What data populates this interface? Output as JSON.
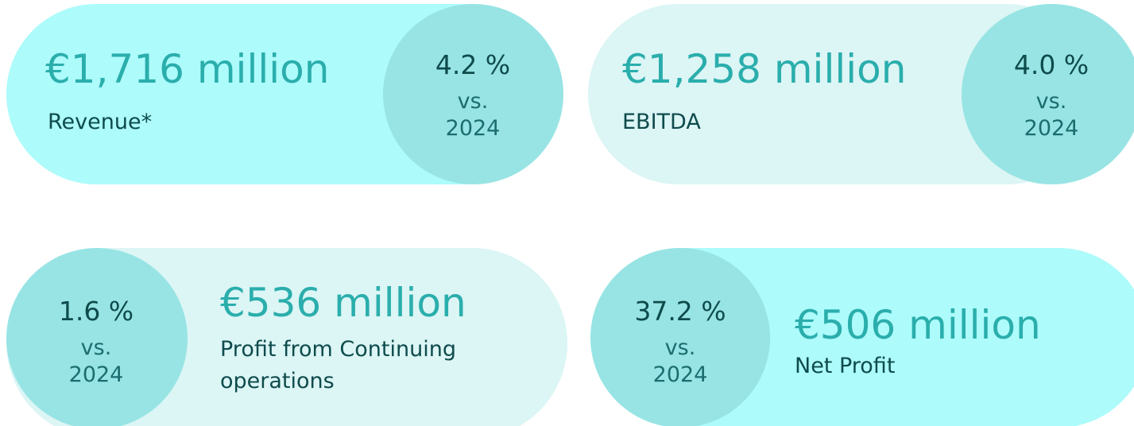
{
  "cards": [
    {
      "value": "€1,716 million",
      "label": "Revenue*",
      "change": "4.2 %",
      "vs": "vs.",
      "year": "2024"
    },
    {
      "value": "€1,258 million",
      "label": "EBITDA",
      "change": "4.0 %",
      "vs": "vs.",
      "year": "2024"
    },
    {
      "value": "€536 million",
      "label": "Profit from Continuing operations",
      "change": "1.6 %",
      "vs": "vs.",
      "year": "2024"
    },
    {
      "value": "€506 million",
      "label": "Net Profit",
      "change": "37.2 %",
      "vs": "vs.",
      "year": "2024"
    }
  ]
}
